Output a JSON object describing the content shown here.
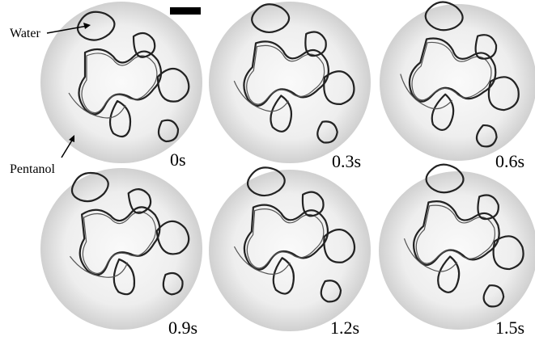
{
  "annotations": {
    "water": "Water",
    "pentanol": "Pentanol"
  },
  "panels": [
    {
      "time": "0s"
    },
    {
      "time": "0.3s"
    },
    {
      "time": "0.6s"
    },
    {
      "time": "0.9s"
    },
    {
      "time": "1.2s"
    },
    {
      "time": "1.5s"
    }
  ]
}
